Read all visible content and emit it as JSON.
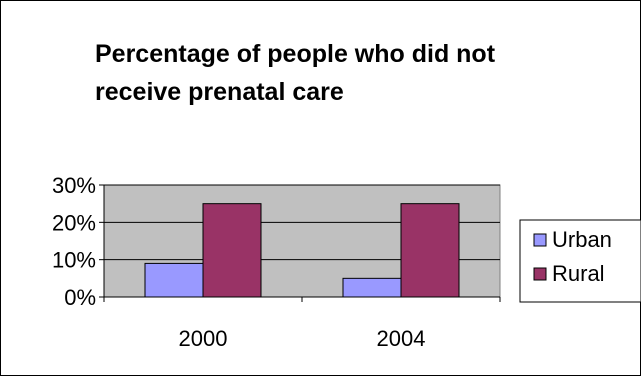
{
  "chart_data": {
    "type": "bar",
    "title": "Percentage of people who did not receive prenatal care",
    "categories": [
      "2000",
      "2004"
    ],
    "series": [
      {
        "name": "Urban",
        "values": [
          9,
          5
        ],
        "color": "#9999ff"
      },
      {
        "name": "Rural",
        "values": [
          25,
          25
        ],
        "color": "#993366"
      }
    ],
    "ylim": [
      0,
      30
    ],
    "yticks": [
      0,
      10,
      20,
      30
    ],
    "ytick_labels": [
      "0%",
      "10%",
      "20%",
      "30%"
    ],
    "xlabel": "",
    "ylabel": "",
    "grid": true,
    "plot_background": "#c0c0c0",
    "legend_position": "right"
  }
}
